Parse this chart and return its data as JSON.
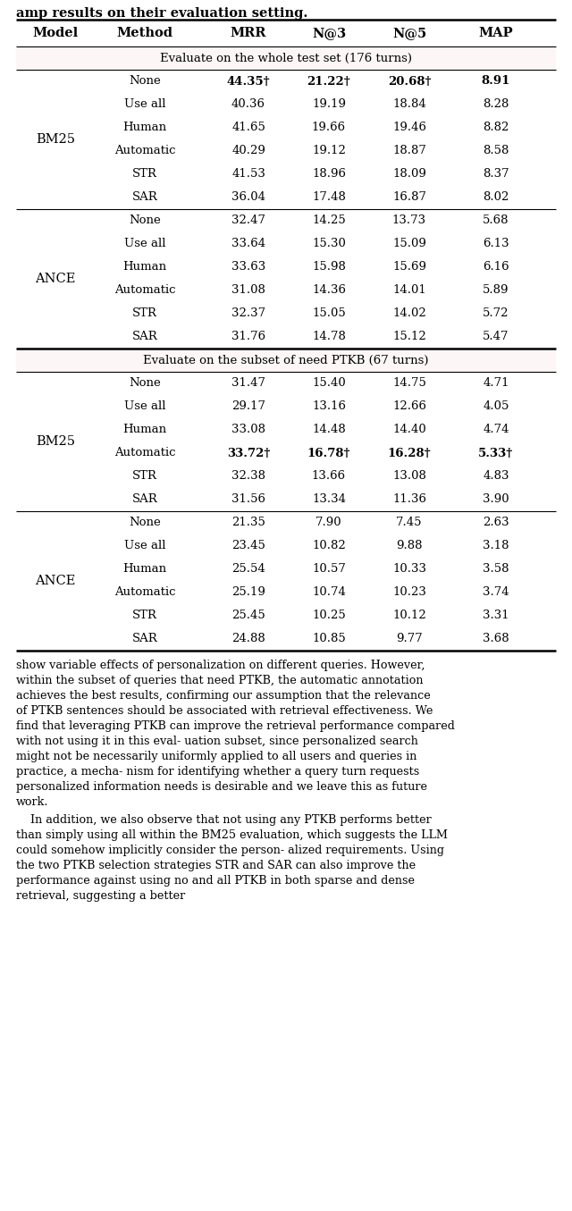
{
  "headers": [
    "Model",
    "Method",
    "MRR",
    "N@3",
    "N@5",
    "MAP"
  ],
  "section1_title": "Evaluate on the whole test set (176 turns)",
  "section2_title": "Evaluate on the subset of need PTKB (67 turns)",
  "rows": [
    {
      "model": "BM25",
      "method": "None",
      "mrr": "44.35†",
      "n3": "21.22†",
      "n5": "20.68†",
      "map": "8.91",
      "bold": true,
      "section": 1
    },
    {
      "model": "BM25",
      "method": "Use all",
      "mrr": "40.36",
      "n3": "19.19",
      "n5": "18.84",
      "map": "8.28",
      "bold": false,
      "section": 1
    },
    {
      "model": "BM25",
      "method": "Human",
      "mrr": "41.65",
      "n3": "19.66",
      "n5": "19.46",
      "map": "8.82",
      "bold": false,
      "section": 1
    },
    {
      "model": "BM25",
      "method": "Automatic",
      "mrr": "40.29",
      "n3": "19.12",
      "n5": "18.87",
      "map": "8.58",
      "bold": false,
      "section": 1
    },
    {
      "model": "BM25",
      "method": "STR",
      "mrr": "41.53",
      "n3": "18.96",
      "n5": "18.09",
      "map": "8.37",
      "bold": false,
      "section": 1
    },
    {
      "model": "BM25",
      "method": "SAR",
      "mrr": "36.04",
      "n3": "17.48",
      "n5": "16.87",
      "map": "8.02",
      "bold": false,
      "section": 1
    },
    {
      "model": "ANCE",
      "method": "None",
      "mrr": "32.47",
      "n3": "14.25",
      "n5": "13.73",
      "map": "5.68",
      "bold": false,
      "section": 1
    },
    {
      "model": "ANCE",
      "method": "Use all",
      "mrr": "33.64",
      "n3": "15.30",
      "n5": "15.09",
      "map": "6.13",
      "bold": false,
      "section": 1
    },
    {
      "model": "ANCE",
      "method": "Human",
      "mrr": "33.63",
      "n3": "15.98",
      "n5": "15.69",
      "map": "6.16",
      "bold": false,
      "section": 1
    },
    {
      "model": "ANCE",
      "method": "Automatic",
      "mrr": "31.08",
      "n3": "14.36",
      "n5": "14.01",
      "map": "5.89",
      "bold": false,
      "section": 1
    },
    {
      "model": "ANCE",
      "method": "STR",
      "mrr": "32.37",
      "n3": "15.05",
      "n5": "14.02",
      "map": "5.72",
      "bold": false,
      "section": 1
    },
    {
      "model": "ANCE",
      "method": "SAR",
      "mrr": "31.76",
      "n3": "14.78",
      "n5": "15.12",
      "map": "5.47",
      "bold": false,
      "section": 1
    },
    {
      "model": "BM25",
      "method": "None",
      "mrr": "31.47",
      "n3": "15.40",
      "n5": "14.75",
      "map": "4.71",
      "bold": false,
      "section": 2
    },
    {
      "model": "BM25",
      "method": "Use all",
      "mrr": "29.17",
      "n3": "13.16",
      "n5": "12.66",
      "map": "4.05",
      "bold": false,
      "section": 2
    },
    {
      "model": "BM25",
      "method": "Human",
      "mrr": "33.08",
      "n3": "14.48",
      "n5": "14.40",
      "map": "4.74",
      "bold": false,
      "section": 2
    },
    {
      "model": "BM25",
      "method": "Automatic",
      "mrr": "33.72†",
      "n3": "16.78†",
      "n5": "16.28†",
      "map": "5.33†",
      "bold": true,
      "section": 2
    },
    {
      "model": "BM25",
      "method": "STR",
      "mrr": "32.38",
      "n3": "13.66",
      "n5": "13.08",
      "map": "4.83",
      "bold": false,
      "section": 2
    },
    {
      "model": "BM25",
      "method": "SAR",
      "mrr": "31.56",
      "n3": "13.34",
      "n5": "11.36",
      "map": "3.90",
      "bold": false,
      "section": 2
    },
    {
      "model": "ANCE",
      "method": "None",
      "mrr": "21.35",
      "n3": "7.90",
      "n5": "7.45",
      "map": "2.63",
      "bold": false,
      "section": 2
    },
    {
      "model": "ANCE",
      "method": "Use all",
      "mrr": "23.45",
      "n3": "10.82",
      "n5": "9.88",
      "map": "3.18",
      "bold": false,
      "section": 2
    },
    {
      "model": "ANCE",
      "method": "Human",
      "mrr": "25.54",
      "n3": "10.57",
      "n5": "10.33",
      "map": "3.58",
      "bold": false,
      "section": 2
    },
    {
      "model": "ANCE",
      "method": "Automatic",
      "mrr": "25.19",
      "n3": "10.74",
      "n5": "10.23",
      "map": "3.74",
      "bold": false,
      "section": 2
    },
    {
      "model": "ANCE",
      "method": "STR",
      "mrr": "25.45",
      "n3": "10.25",
      "n5": "10.12",
      "map": "3.31",
      "bold": false,
      "section": 2
    },
    {
      "model": "ANCE",
      "method": "SAR",
      "mrr": "24.88",
      "n3": "10.85",
      "n5": "9.77",
      "map": "3.68",
      "bold": false,
      "section": 2
    }
  ],
  "title_partial": "amp results on their evaluation setting.",
  "body_paragraphs": [
    "show variable effects of personalization on different queries. However, within the subset of queries that need PTKB, the automatic annotation achieves the best results, confirming our assumption that the relevance of PTKB sentences should be associated with retrieval effectiveness. We find that leveraging PTKB can improve the retrieval performance compared with not using it in this eval- uation subset, since personalized search might not be necessarily uniformly applied to all users and queries in practice, a mecha- nism for identifying whether a query turn requests personalized information needs is desirable and we leave this as future work.",
    "In addition, we also observe that not using any PTKB performs better than simply using all within the BM25 evaluation, which suggests the LLM could somehow implicitly consider the person- alized requirements. Using the two PTKB selection strategies STR and SAR can also improve the performance against using no and all PTKB in both sparse and dense retrieval, suggesting a better"
  ]
}
